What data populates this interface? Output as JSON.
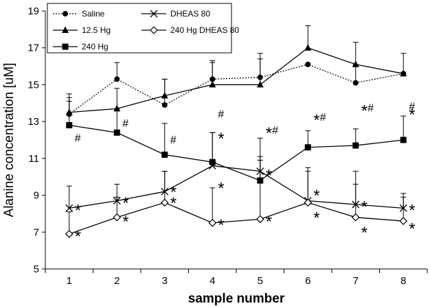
{
  "chart_data": {
    "type": "line",
    "xlabel": "sample number",
    "ylabel": "Alanine concentration  [uM]",
    "x": [
      1,
      2,
      3,
      4,
      5,
      6,
      7,
      8
    ],
    "xlim": [
      0.5,
      8.5
    ],
    "ylim": [
      5,
      19
    ],
    "yticks": [
      5,
      7,
      9,
      11,
      13,
      15,
      17,
      19
    ],
    "legend_position": "top-left",
    "grid": false,
    "series": [
      {
        "name": "Saline",
        "marker": "circle",
        "line": "dotted",
        "values": [
          13.4,
          15.3,
          13.9,
          15.3,
          15.4,
          16.1,
          15.1,
          15.6
        ],
        "errors": [
          0.9,
          0.9,
          1.4,
          1.0,
          1.0,
          0.0,
          1.0,
          0.0
        ]
      },
      {
        "name": "12.5 Hg",
        "marker": "triangle",
        "line": "solid",
        "values": [
          13.5,
          13.7,
          14.4,
          15.0,
          15.0,
          17.0,
          16.1,
          15.6
        ],
        "errors": [
          1.0,
          1.1,
          0.9,
          1.2,
          1.7,
          1.2,
          1.2,
          1.1
        ]
      },
      {
        "name": "240 Hg",
        "marker": "square",
        "line": "solid",
        "values": [
          12.8,
          12.4,
          11.2,
          10.8,
          9.8,
          11.6,
          11.7,
          12.0
        ],
        "errors": [
          1.3,
          1.3,
          1.7,
          1.6,
          2.3,
          0.9,
          0.9,
          1.3
        ]
      },
      {
        "name": "DHEAS 80",
        "marker": "x",
        "line": "solid",
        "values": [
          8.3,
          8.7,
          9.2,
          10.6,
          10.3,
          8.7,
          8.5,
          8.3
        ],
        "errors": [
          1.2,
          0.9,
          1.1,
          1.8,
          0.8,
          1.8,
          1.1,
          0.8
        ]
      },
      {
        "name": "240 Hg DHEAS 80",
        "marker": "diamond-open",
        "line": "solid",
        "values": [
          6.9,
          7.8,
          8.6,
          7.5,
          7.7,
          8.6,
          7.8,
          7.6
        ],
        "errors": [
          1.2,
          1.1,
          1.7,
          1.9,
          3.2,
          1.7,
          2.5,
          1.3
        ]
      }
    ],
    "annotations": [
      {
        "text": "#",
        "x": 1,
        "y": 12.1
      },
      {
        "text": "#",
        "x": 2,
        "y": 12.9
      },
      {
        "text": "#",
        "x": 3,
        "y": 12.0
      },
      {
        "text": "#",
        "x": 4,
        "y": 13.4
      },
      {
        "text": "*",
        "x": 4,
        "y": 12.3,
        "big": true
      },
      {
        "text": "*#",
        "x": 5,
        "y": 12.6,
        "big": true
      },
      {
        "text": "*#",
        "x": 6,
        "y": 13.3,
        "big": true
      },
      {
        "text": "*#",
        "x": 7,
        "y": 13.8,
        "big": true
      },
      {
        "text": "*",
        "x": 8,
        "y": 13.6,
        "big": true
      },
      {
        "text": "#",
        "x": 8,
        "y": 13.8
      },
      {
        "text": "*",
        "x": 1,
        "y": 8.4,
        "big": true
      },
      {
        "text": "*",
        "x": 1,
        "y": 7.0,
        "big": true
      },
      {
        "text": "*",
        "x": 2,
        "y": 8.8,
        "big": true
      },
      {
        "text": "*",
        "x": 2,
        "y": 7.8,
        "big": true
      },
      {
        "text": "*",
        "x": 3,
        "y": 9.4,
        "big": true
      },
      {
        "text": "*",
        "x": 3,
        "y": 8.8,
        "big": true
      },
      {
        "text": "*",
        "x": 4,
        "y": 9.6,
        "big": true
      },
      {
        "text": "*",
        "x": 4,
        "y": 7.6,
        "big": true
      },
      {
        "text": "*",
        "x": 5,
        "y": 10.3,
        "big": true
      },
      {
        "text": "*",
        "x": 5,
        "y": 7.8,
        "big": true
      },
      {
        "text": "*",
        "x": 6,
        "y": 9.2,
        "big": true
      },
      {
        "text": "*",
        "x": 6,
        "y": 8.0,
        "big": true
      },
      {
        "text": "*",
        "x": 7,
        "y": 8.6,
        "big": true
      },
      {
        "text": "*",
        "x": 7,
        "y": 7.2,
        "big": true
      },
      {
        "text": "*",
        "x": 8,
        "y": 8.4,
        "big": true
      },
      {
        "text": "*",
        "x": 8,
        "y": 7.4,
        "big": true
      }
    ]
  }
}
